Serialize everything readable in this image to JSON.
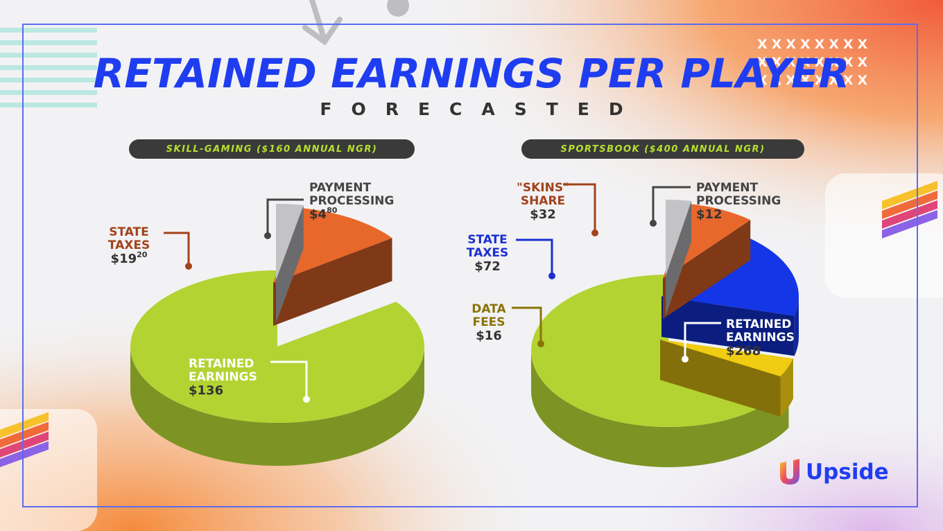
{
  "header": {
    "title": "RETAINED EARNINGS PER PLAYER",
    "subtitle": "FORECASTED"
  },
  "logo": {
    "text": "Upside",
    "icon": "upside-u-icon"
  },
  "decor": {
    "x_marks": "XXXXXXXX"
  },
  "colors": {
    "title_blue": "#1f3df0",
    "pill_bg": "#3a3a3a",
    "pill_text": "#b7e02f",
    "retained": "#b3d333",
    "state_taxes_skill": "#e8672a",
    "state_taxes_sports": "#1436e6",
    "skins_share": "#e8672a",
    "payment_processing": "#c3c3c6",
    "data_fees": "#f0cc12"
  },
  "chart_data": [
    {
      "type": "pie",
      "title": "SKILL-GAMING ($160 ANNUAL NGR)",
      "total": 160,
      "slices": [
        {
          "label": "PAYMENT PROCESSING",
          "value": 4.8,
          "value_text": "$4",
          "value_sup": "80",
          "color": "#c3c3c6"
        },
        {
          "label": "STATE TAXES",
          "value": 19.2,
          "value_text": "$19",
          "value_sup": "20",
          "color": "#e8672a"
        },
        {
          "label": "RETAINED EARNINGS",
          "value": 136,
          "value_text": "$136",
          "value_sup": "",
          "color": "#b3d333"
        }
      ]
    },
    {
      "type": "pie",
      "title": "SPORTSBOOK ($400 ANNUAL NGR)",
      "total": 400,
      "slices": [
        {
          "label": "PAYMENT PROCESSING",
          "value": 12,
          "value_text": "$12",
          "value_sup": "",
          "color": "#c3c3c6"
        },
        {
          "label": "\"SKINS\" SHARE",
          "value": 32,
          "value_text": "$32",
          "value_sup": "",
          "color": "#e8672a"
        },
        {
          "label": "STATE TAXES",
          "value": 72,
          "value_text": "$72",
          "value_sup": "",
          "color": "#1436e6"
        },
        {
          "label": "DATA FEES",
          "value": 16,
          "value_text": "$16",
          "value_sup": "",
          "color": "#f0cc12"
        },
        {
          "label": "RETAINED EARNINGS",
          "value": 268,
          "value_text": "$268",
          "value_sup": "",
          "color": "#b3d333"
        }
      ]
    }
  ]
}
